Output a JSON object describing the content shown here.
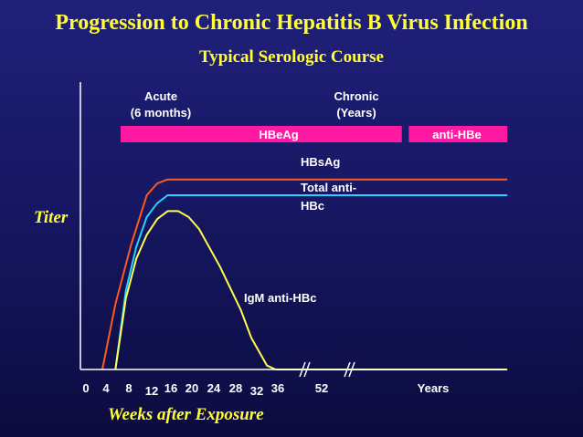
{
  "title": "Progression to Chronic Hepatitis B Virus Infection",
  "subtitle": "Typical Serologic Course",
  "colors": {
    "title": "#ffff33",
    "label": "#ffffff",
    "axis": "#ffffff",
    "bar": "#ff1aa3",
    "hbsag_curve": "#ff5a1e",
    "total_antihbc_curve": "#22d4ff",
    "igm_curve": "#ffff4a"
  },
  "chart_data": {
    "type": "line",
    "title": "Progression to Chronic Hepatitis B Virus Infection",
    "subtitle": "Typical Serologic Course",
    "xlabel": "Weeks after Exposure",
    "ylabel": "Titer",
    "x_ticks": [
      "0",
      "4",
      "8",
      "12",
      "16",
      "20",
      "24",
      "28",
      "32",
      "36",
      "52",
      "Years"
    ],
    "x_break_marks": 2,
    "phase_labels": [
      {
        "text": "Acute\n(6 months)",
        "week": 14
      },
      {
        "text": "Chronic\n(Years)",
        "week": 54
      }
    ],
    "bars": [
      {
        "label": "HBeAg",
        "start_week": 7,
        "end_week": 63
      },
      {
        "label": "anti-HBe",
        "start_week": 64,
        "end_week": 78
      }
    ],
    "series": [
      {
        "name": "HBsAg",
        "x": [
          3.5,
          6,
          9,
          12,
          14,
          16,
          20,
          36,
          52,
          78
        ],
        "y": [
          0,
          33,
          63,
          88,
          94,
          96,
          96,
          96,
          96,
          96
        ]
      },
      {
        "name": "Total anti-HBc",
        "x": [
          6,
          8,
          10,
          12,
          14,
          16,
          20,
          36,
          52,
          78
        ],
        "y": [
          0,
          40,
          62,
          77,
          84,
          88,
          88,
          88,
          88,
          88
        ]
      },
      {
        "name": "IgM anti-HBc",
        "x": [
          6,
          8,
          10,
          12,
          14,
          16,
          18,
          20,
          22,
          26,
          30,
          32,
          35,
          37,
          52,
          78
        ],
        "y": [
          0,
          36,
          56,
          68,
          76,
          80,
          80,
          77,
          71,
          52,
          30,
          16,
          2,
          0,
          0,
          0
        ]
      }
    ],
    "ylim": [
      0,
      100
    ],
    "grid": false
  }
}
